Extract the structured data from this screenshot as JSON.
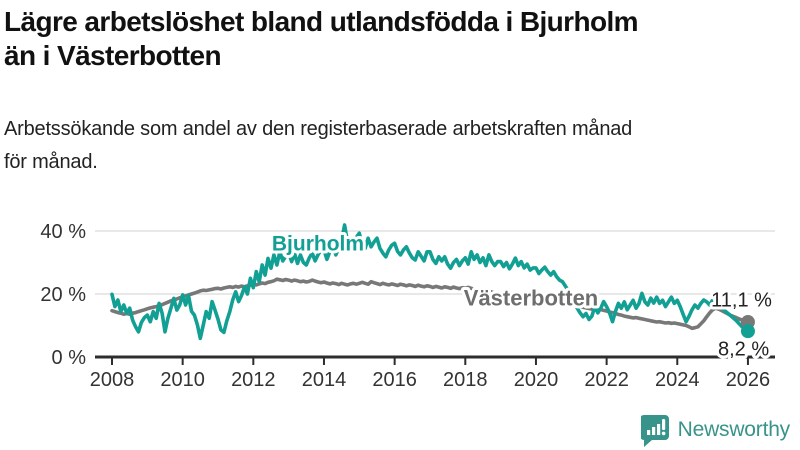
{
  "header": {
    "title_lines": [
      "Lägre arbetslöshet bland utlandsfödda i Bjurholm",
      "än i Västerbotten"
    ],
    "subtitle_lines": [
      "Arbetssökande som andel av den registerbaserade arbetskraften månad",
      "för månad."
    ]
  },
  "footer": {
    "brand": "Newsworthy",
    "logo_icon": "newsworthy-speech-bubble-bar-chart-icon"
  },
  "colors": {
    "bjurholm": "#13a094",
    "vasterbotten": "#787878",
    "vasterbotten_label": "#6e6e6e",
    "axis": "#2d2d2d",
    "grid": "#dadada",
    "tick_text": "#333333",
    "value_text": "#222222",
    "brand": "#38948a"
  },
  "chart_data": {
    "type": "line",
    "title": "Lägre arbetslöshet bland utlandsfödda i Bjurholm än i Västerbotten",
    "subtitle": "Arbetssökande som andel av den registerbaserade arbetskraften månad för månad.",
    "unit": "%",
    "grid": true,
    "legend_position": "inline-labels",
    "x_range": [
      2007.5,
      2026.8
    ],
    "y_range": [
      0,
      43
    ],
    "x_ticks": [
      2008,
      2010,
      2012,
      2014,
      2016,
      2018,
      2020,
      2022,
      2024,
      2026
    ],
    "x_tick_labels": [
      "2008",
      "2010",
      "2012",
      "2014",
      "2016",
      "2018",
      "2020",
      "2022",
      "2024",
      "2026"
    ],
    "y_ticks": [
      0,
      20,
      40
    ],
    "y_tick_labels": [
      "0 %",
      "20 %",
      "40 %"
    ],
    "start_year": 2008,
    "points_per_year": 12,
    "series": [
      {
        "name": "Västerbotten",
        "color": "#787878",
        "end_label": "11,1 %",
        "end_value": 11.1,
        "values": [
          14.7,
          14.4,
          14.1,
          13.9,
          13.6,
          13.8,
          13.6,
          13.9,
          14.1,
          14.4,
          14.7,
          15.0,
          15.3,
          15.6,
          15.8,
          16.0,
          16.3,
          16.6,
          17.0,
          17.4,
          17.8,
          18.1,
          18.4,
          18.8,
          19.1,
          19.4,
          19.7,
          20.0,
          20.3,
          20.6,
          21.0,
          21.2,
          21.1,
          21.3,
          21.5,
          21.7,
          21.8,
          21.6,
          21.9,
          22.1,
          22.3,
          22.1,
          22.4,
          22.2,
          22.5,
          22.3,
          22.6,
          22.8,
          23.1,
          22.9,
          23.2,
          23.5,
          23.3,
          23.7,
          23.9,
          24.2,
          24.7,
          24.5,
          24.3,
          24.6,
          24.4,
          24.1,
          24.4,
          24.2,
          23.9,
          24.1,
          23.8,
          24.0,
          24.4,
          24.1,
          23.8,
          23.6,
          23.8,
          23.5,
          23.2,
          23.5,
          23.3,
          23.0,
          23.4,
          23.1,
          22.9,
          23.2,
          23.4,
          23.1,
          23.4,
          23.7,
          23.4,
          23.1,
          23.9,
          23.6,
          23.3,
          23.0,
          23.4,
          23.1,
          22.9,
          23.2,
          23.0,
          22.7,
          23.1,
          22.9,
          22.6,
          22.9,
          22.7,
          22.4,
          22.8,
          22.5,
          22.3,
          22.6,
          22.4,
          22.1,
          22.4,
          22.2,
          21.9,
          22.3,
          22.1,
          21.8,
          22.2,
          21.9,
          21.7,
          22.0,
          21.8,
          22.1,
          21.8,
          21.5,
          21.2,
          21.4,
          21.1,
          20.8,
          20.9,
          20.6,
          20.3,
          20.4,
          20.1,
          19.8,
          19.9,
          19.6,
          19.3,
          19.4,
          19.1,
          18.8,
          18.9,
          18.6,
          18.3,
          18.4,
          18.1,
          18.2,
          18.5,
          18.9,
          19.1,
          18.8,
          18.5,
          18.2,
          17.9,
          17.6,
          17.3,
          17.0,
          16.7,
          16.4,
          16.1,
          16.0,
          15.8,
          15.6,
          15.4,
          15.2,
          15.0,
          14.9,
          15.1,
          14.8,
          14.6,
          14.3,
          14.1,
          13.8,
          13.5,
          13.3,
          13.0,
          12.8,
          12.6,
          12.4,
          12.5,
          12.3,
          12.1,
          11.9,
          11.7,
          11.5,
          11.3,
          11.1,
          11.2,
          11.0,
          10.8,
          10.9,
          10.7,
          10.8,
          10.6,
          10.4,
          10.2,
          10.0,
          9.6,
          9.1,
          9.3,
          9.6,
          10.5,
          11.5,
          12.8,
          14.0,
          15.0,
          15.5,
          15.2,
          14.8,
          14.3,
          13.8,
          13.3,
          12.9,
          12.5,
          12.1,
          11.7,
          11.4,
          11.1
        ]
      },
      {
        "name": "Bjurholm",
        "color": "#13a094",
        "end_label": "8,2 %",
        "end_value": 8.2,
        "values": [
          19.9,
          16.0,
          18.1,
          14.4,
          16.5,
          13.9,
          15.5,
          11.7,
          9.6,
          8.0,
          11.0,
          12.5,
          13.3,
          11.2,
          14.4,
          12.3,
          17.0,
          13.9,
          8.0,
          12.3,
          15.5,
          18.6,
          14.9,
          16.5,
          19.7,
          16.5,
          19.5,
          14.5,
          13.3,
          10.2,
          5.9,
          10.2,
          14.4,
          12.3,
          17.6,
          14.9,
          12.0,
          8.6,
          7.8,
          11.5,
          14.4,
          18.1,
          20.7,
          17.6,
          19.5,
          22.3,
          20.0,
          25.0,
          22.0,
          27.1,
          23.9,
          29.2,
          26.0,
          31.3,
          28.2,
          32.4,
          29.2,
          33.4,
          30.5,
          32.0,
          33.4,
          30.3,
          32.9,
          29.7,
          32.4,
          30.0,
          29.2,
          31.5,
          33.0,
          30.5,
          32.5,
          34.0,
          34.0,
          31.0,
          33.5,
          35.6,
          32.4,
          34.5,
          37.0,
          41.9,
          36.5,
          34.0,
          36.0,
          38.0,
          39.3,
          35.5,
          34.5,
          37.7,
          35.0,
          36.5,
          37.7,
          34.5,
          33.0,
          31.8,
          34.0,
          35.5,
          36.1,
          33.5,
          32.4,
          34.0,
          35.0,
          33.0,
          31.5,
          30.8,
          33.4,
          32.0,
          30.5,
          33.4,
          33.4,
          31.0,
          29.7,
          31.8,
          30.5,
          31.8,
          29.5,
          28.2,
          30.0,
          31.0,
          29.0,
          30.5,
          31.5,
          29.5,
          33.4,
          31.0,
          32.4,
          30.0,
          31.5,
          29.0,
          32.4,
          30.3,
          29.0,
          30.3,
          30.3,
          28.7,
          30.0,
          28.0,
          29.5,
          31.4,
          29.0,
          30.3,
          28.3,
          29.5,
          27.6,
          28.3,
          28.3,
          26.5,
          27.6,
          28.5,
          27.1,
          26.0,
          27.1,
          25.5,
          24.4,
          23.9,
          22.5,
          21.0,
          19.5,
          17.5,
          15.5,
          14.0,
          12.8,
          13.8,
          11.9,
          13.0,
          16.0,
          14.0,
          15.5,
          17.6,
          16.0,
          14.0,
          11.2,
          14.5,
          17.0,
          15.5,
          17.5,
          15.0,
          16.5,
          18.0,
          15.5,
          17.0,
          20.2,
          17.5,
          16.5,
          18.7,
          17.1,
          19.0,
          17.0,
          18.0,
          16.0,
          17.5,
          19.0,
          17.0,
          18.0,
          16.0,
          13.5,
          11.2,
          13.0,
          15.0,
          16.5,
          15.5,
          17.0,
          18.1,
          17.5,
          16.5,
          18.1,
          17.2,
          16.4,
          15.6,
          14.8,
          14.0,
          13.2,
          12.4,
          11.6,
          10.6,
          9.6,
          8.8,
          8.2
        ]
      }
    ],
    "annotations": [
      {
        "text": "Bjurholm",
        "x": 2013.83,
        "y": 33.8,
        "color": "#13a094",
        "bold": true,
        "halo": true,
        "anchor": "middle",
        "size": 21
      },
      {
        "text": "Västerbotten",
        "x": 2019.86,
        "y": 16.3,
        "color": "#6e6e6e",
        "bold": true,
        "halo": true,
        "anchor": "middle",
        "size": 22
      },
      {
        "text": "11,1 %",
        "x": 2026.68,
        "y": 16.1,
        "color": "#222222",
        "bold": false,
        "halo": true,
        "anchor": "end",
        "size": 20
      },
      {
        "text": "8,2 %",
        "x": 2026.6,
        "y": 0.4,
        "color": "#222222",
        "bold": false,
        "halo": true,
        "anchor": "end",
        "size": 20
      }
    ]
  }
}
